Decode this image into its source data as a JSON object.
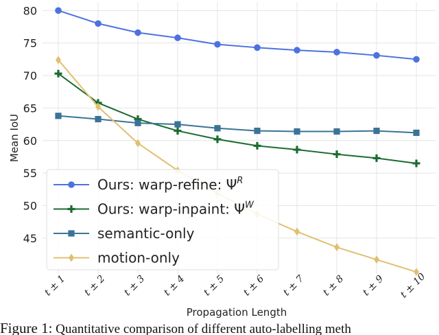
{
  "chart_data": {
    "type": "line",
    "xlabel": "Propagation Length",
    "ylabel": "Mean IoU",
    "categories": [
      "t ± 1",
      "t ± 2",
      "t ± 3",
      "t ± 4",
      "t ± 5",
      "t ± 6",
      "t ± 7",
      "t ± 8",
      "t ± 9",
      "t ± 10"
    ],
    "yticks": [
      45,
      50,
      55,
      60,
      65,
      70,
      75,
      80
    ],
    "ylim": [
      39.5,
      81.3
    ],
    "grid": true,
    "legend_position": "bottom-left",
    "series": [
      {
        "name": "Ours: warp-refine: Ψ",
        "name_sup": "R",
        "color": "#4c72e0",
        "marker": "circle",
        "values": [
          80.0,
          78.0,
          76.6,
          75.8,
          74.8,
          74.3,
          73.9,
          73.6,
          73.1,
          72.5
        ]
      },
      {
        "name": "Ours: warp-inpaint: Ψ",
        "name_sup": "W",
        "color": "#1a6b30",
        "marker": "plus",
        "values": [
          70.3,
          65.8,
          63.3,
          61.5,
          60.2,
          59.2,
          58.6,
          57.9,
          57.3,
          56.5
        ]
      },
      {
        "name": "semantic-only",
        "color": "#3a7396",
        "marker": "square",
        "values": [
          63.8,
          63.3,
          62.7,
          62.5,
          61.9,
          61.5,
          61.4,
          61.4,
          61.5,
          61.2
        ]
      },
      {
        "name": "motion-only",
        "color": "#e0c070",
        "marker": "diamond",
        "values": [
          72.4,
          65.2,
          59.6,
          55.4,
          51.9,
          48.7,
          46.0,
          43.6,
          41.7,
          39.8
        ]
      }
    ]
  },
  "caption": {
    "label": "Figure 1:",
    "text": "Quantitative comparison of different auto-labelling meth"
  }
}
